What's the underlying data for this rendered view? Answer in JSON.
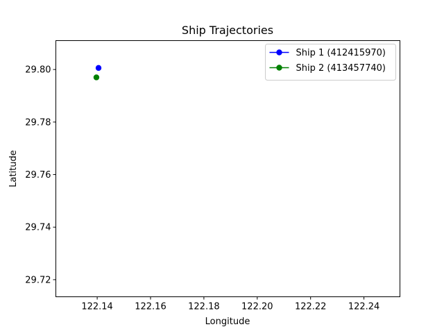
{
  "chart_data": {
    "type": "line",
    "title": "Ship Trajectories",
    "xlabel": "Longitude",
    "ylabel": "Latitude",
    "xlim": [
      122.1245,
      122.2535
    ],
    "ylim": [
      29.7135,
      29.811
    ],
    "xticks": [
      122.14,
      122.16,
      122.18,
      122.2,
      122.22,
      122.24
    ],
    "xtick_labels": [
      "122.14",
      "122.16",
      "122.18",
      "122.20",
      "122.22",
      "122.24"
    ],
    "yticks": [
      29.72,
      29.74,
      29.76,
      29.78,
      29.8
    ],
    "ytick_labels": [
      "29.72",
      "29.74",
      "29.76",
      "29.78",
      "29.80"
    ],
    "grid": false,
    "legend_position": "top-right",
    "series": [
      {
        "name": "Ship 1 (412415970)",
        "color": "#0000ff",
        "marker": "circle",
        "points": [
          {
            "x": 122.1405,
            "y": 29.8006
          }
        ]
      },
      {
        "name": "Ship 2 (413457740)",
        "color": "#008000",
        "marker": "circle",
        "points": [
          {
            "x": 122.1397,
            "y": 29.797
          }
        ]
      }
    ]
  }
}
